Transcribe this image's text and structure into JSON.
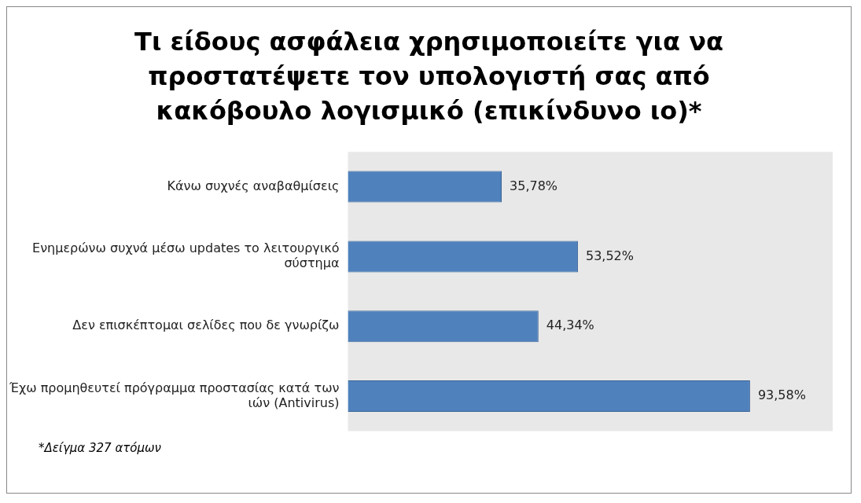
{
  "chart_data": {
    "type": "bar",
    "orientation": "horizontal",
    "title": "Τι είδους ασφάλεια χρησιμοποιείτε για να προστατέψετε τον υπολογιστή σας από κακόβουλο λογισμικό (επικίνδυνο ιο)*",
    "categories": [
      "Κάνω συχνές αναβαθμίσεις",
      "Ενημερώνω συχνά μέσω updates το λειτουργικό σύστημα",
      "Δεν επισκέπτομαι σελίδες που δε γνωρίζω",
      "Έχω προμηθευτεί πρόγραμμα προστασίας κατά των ιών (Antivirus)"
    ],
    "values": [
      35.78,
      53.52,
      44.34,
      93.58
    ],
    "value_labels": [
      "35,78%",
      "53,52%",
      "44,34%",
      "93,58%"
    ],
    "color": "#4f81bd",
    "annotations": [
      "*Δείγμα 327 ατόμων"
    ]
  }
}
